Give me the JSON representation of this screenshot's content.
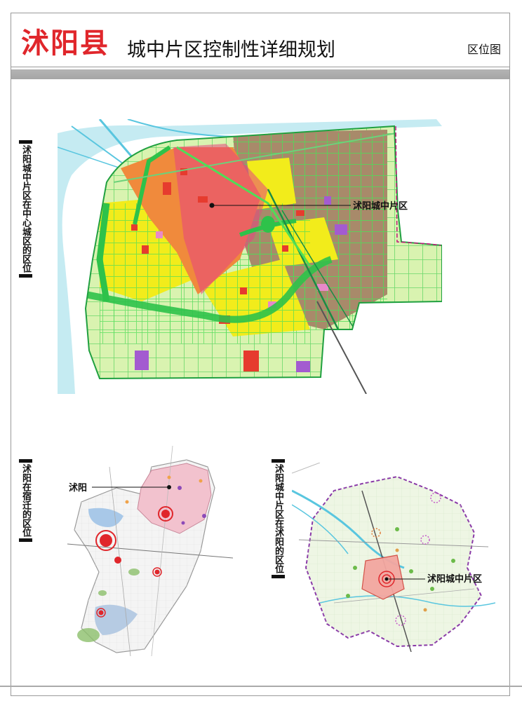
{
  "header": {
    "county_name": "沭阳县",
    "plan_title": "城中片区控制性详细规划",
    "map_type": "区位图"
  },
  "panels": {
    "main": {
      "side_label": "沭阳城中片区在中心城区的区位",
      "callout": "沭阳城中片区"
    },
    "left": {
      "side_label": "沭阳在宿迁的区位",
      "callout": "沭阳"
    },
    "right": {
      "side_label": "沭阳城中片区在沭阳的区位",
      "callout": "沭阳城中片区"
    }
  },
  "colors": {
    "title_red": "#e0262b",
    "residential_yellow": "#f2ec1b",
    "industrial_brown": "#a88a6a",
    "commercial_red": "#e63b2e",
    "green_space": "#3fbf3f",
    "water_cyan": "#7fd3e6",
    "highlight_orange": "#f08a3c"
  }
}
